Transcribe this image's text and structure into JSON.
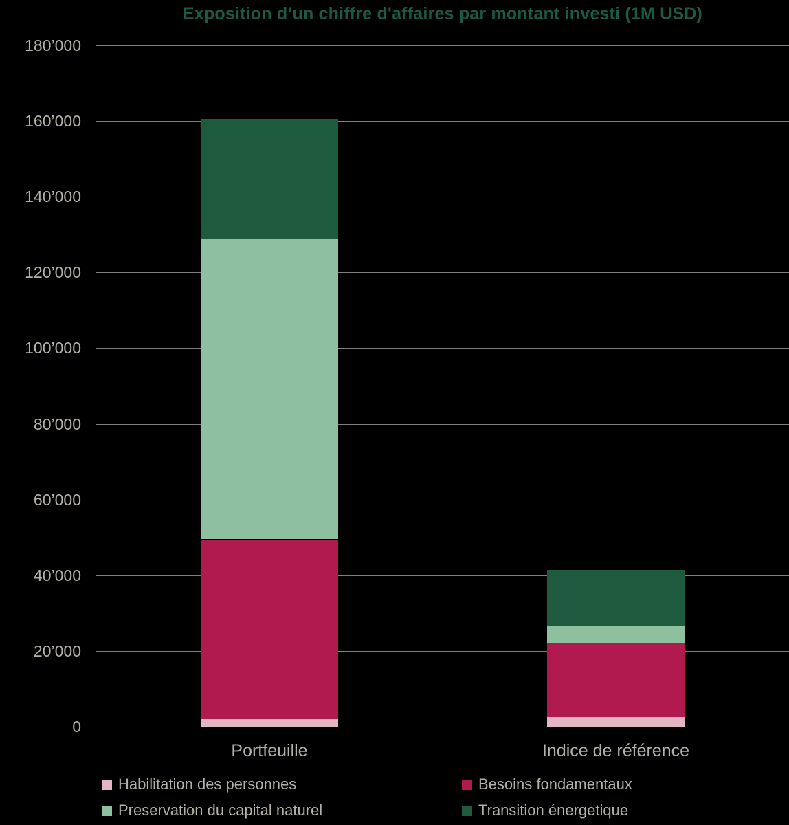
{
  "title": "Exposition d’un chiffre d'affaires par montant investi (1M USD)",
  "colors": {
    "background": "#000000",
    "title": "#1d5947",
    "axis_text": "#b3b0a8",
    "gridline": "#7f7f7f"
  },
  "chart_data": {
    "type": "bar",
    "stacked": true,
    "title": "Exposition d’un chiffre d'affaires par montant investi (1M USD)",
    "categories": [
      "Portfeuille",
      "Indice de référence"
    ],
    "series": [
      {
        "name": "Habilitation des personnes",
        "color": "#e2b6c3",
        "values": [
          2000,
          2500
        ]
      },
      {
        "name": "Besoins fondamentaux",
        "color": "#b11a4f",
        "values": [
          47500,
          19500
        ]
      },
      {
        "name": "Preservation du capital naturel",
        "color": "#8ebf9e",
        "values": [
          79500,
          4500
        ]
      },
      {
        "name": "Transition énergetique",
        "color": "#1e5b3e",
        "values": [
          31500,
          15000
        ]
      }
    ],
    "totals": {
      "Portfeuille": 160500,
      "Indice de référence": 41500
    },
    "ylim": [
      0,
      180000
    ],
    "ytick_step": 20000,
    "ytick_labels": [
      "0",
      "20’000",
      "40’000",
      "60’000",
      "80’000",
      "100’000",
      "120’000",
      "140’000",
      "160’000",
      "180’000"
    ],
    "grid": true,
    "legend_position": "bottom",
    "xlabel": "",
    "ylabel": ""
  }
}
